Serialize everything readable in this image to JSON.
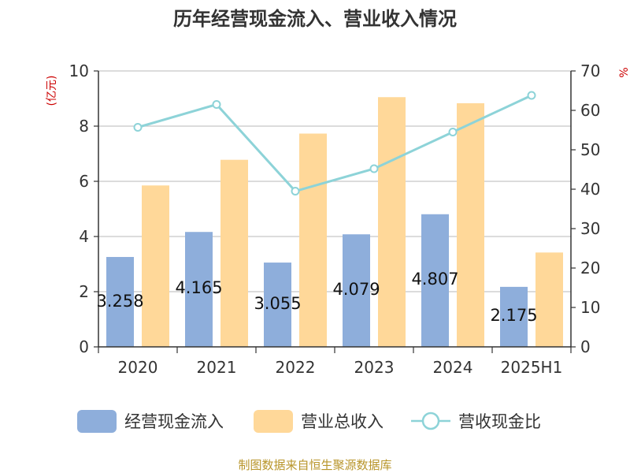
{
  "chart_data": {
    "type": "bar",
    "title": "历年经营现金流入、营业收入情况",
    "categories": [
      "2020",
      "2021",
      "2022",
      "2023",
      "2024",
      "2025H1"
    ],
    "series": [
      {
        "name": "经营现金流入",
        "type": "bar",
        "axis": "left",
        "color": "#8eaedb",
        "values": [
          3.258,
          4.165,
          3.055,
          4.079,
          4.807,
          2.175
        ],
        "labels": [
          "3.258",
          "4.165",
          "3.055",
          "4.079",
          "4.807",
          "2.175"
        ]
      },
      {
        "name": "营业总收入",
        "type": "bar",
        "axis": "left",
        "color": "#ffd899",
        "values": [
          5.85,
          6.78,
          7.73,
          9.05,
          8.83,
          3.42
        ]
      },
      {
        "name": "营收现金比",
        "type": "line",
        "axis": "right",
        "color": "#8dd3d8",
        "values": [
          55.7,
          61.5,
          39.5,
          45.2,
          54.5,
          63.8
        ]
      }
    ],
    "y_left": {
      "label": "(亿元)",
      "min": 0,
      "max": 10,
      "ticks": [
        "0",
        "2",
        "4",
        "6",
        "8",
        "10"
      ]
    },
    "y_right": {
      "label": "%",
      "min": 0,
      "max": 70,
      "ticks": [
        "0",
        "10",
        "20",
        "30",
        "40",
        "50",
        "60",
        "70"
      ]
    },
    "grid": true,
    "legend_position": "bottom"
  },
  "footer": {
    "source": "制图数据来自恒生聚源数据库"
  }
}
